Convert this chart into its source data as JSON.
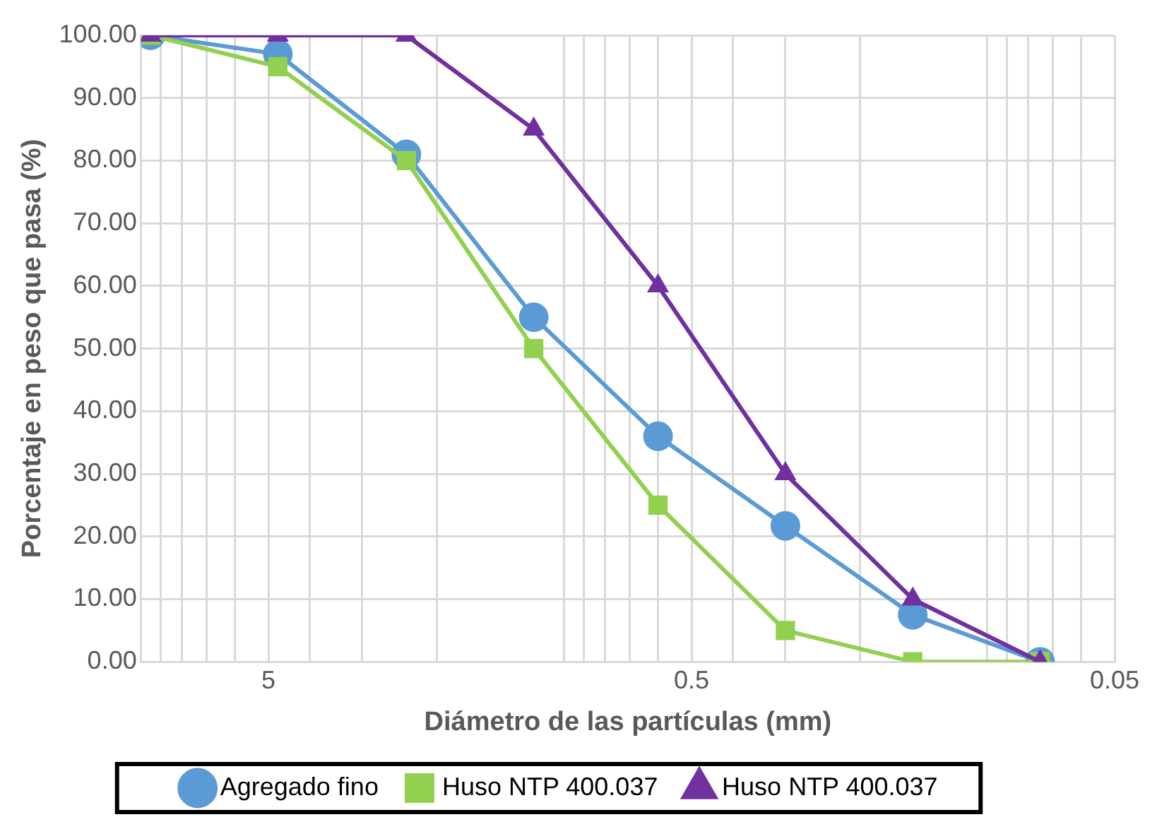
{
  "chart_data": {
    "type": "line",
    "xlabel": "Diámetro de las partículas (mm)",
    "ylabel": "Porcentaje en peso que pasa (%)",
    "x": [
      9.5,
      4.75,
      2.36,
      1.18,
      0.6,
      0.3,
      0.15,
      0.075
    ],
    "series": [
      {
        "name": "Agregado fino",
        "color": "#5b9bd5",
        "marker": "circle",
        "values": [
          100,
          97,
          81,
          55,
          36,
          21.7,
          7.5,
          0
        ]
      },
      {
        "name": "Huso NTP 400.037",
        "color": "#92d050",
        "marker": "square",
        "values": [
          100,
          95,
          80,
          50,
          25,
          5,
          0,
          0
        ]
      },
      {
        "name": "Huso NTP 400.037",
        "color": "#7030a0",
        "marker": "triangle",
        "values": [
          100,
          100,
          100,
          85,
          60,
          30,
          10,
          0
        ]
      }
    ],
    "log": "x",
    "xlim": [
      10,
      0.05
    ],
    "xticks": [
      {
        "value": 10,
        "label": null
      },
      {
        "value": 9,
        "label": null
      },
      {
        "value": 8,
        "label": null
      },
      {
        "value": 7,
        "label": null
      },
      {
        "value": 6,
        "label": null
      },
      5,
      {
        "value": 4,
        "label": null
      },
      {
        "value": 3,
        "label": null
      },
      {
        "value": 2,
        "label": null
      },
      {
        "value": 1,
        "label": null
      },
      {
        "value": 0.9,
        "label": null
      },
      {
        "value": 0.8,
        "label": null
      },
      {
        "value": 0.7,
        "label": null
      },
      {
        "value": 0.6,
        "label": null
      },
      0.5,
      {
        "value": 0.4,
        "label": null
      },
      {
        "value": 0.3,
        "label": null
      },
      {
        "value": 0.2,
        "label": null
      },
      {
        "value": 0.1,
        "label": null
      },
      {
        "value": 0.09,
        "label": null
      },
      {
        "value": 0.08,
        "label": null
      },
      {
        "value": 0.07,
        "label": null
      },
      {
        "value": 0.06,
        "label": null
      },
      0.05
    ],
    "ylim": [
      0,
      100
    ],
    "yticks": [
      {
        "value": 0,
        "label": "0.00"
      },
      {
        "value": 10,
        "label": "10.00"
      },
      {
        "value": 20,
        "label": "20.00"
      },
      {
        "value": 30,
        "label": "30.00"
      },
      {
        "value": 40,
        "label": "40.00"
      },
      {
        "value": 50,
        "label": "50.00"
      },
      {
        "value": 60,
        "label": "60.00"
      },
      {
        "value": 70,
        "label": "70.00"
      },
      {
        "value": 80,
        "label": "80.00"
      },
      {
        "value": 90,
        "label": "90.00"
      },
      {
        "value": 100,
        "label": "100.00"
      }
    ],
    "grid": true,
    "legend": "bottom",
    "line_style": "solid"
  }
}
